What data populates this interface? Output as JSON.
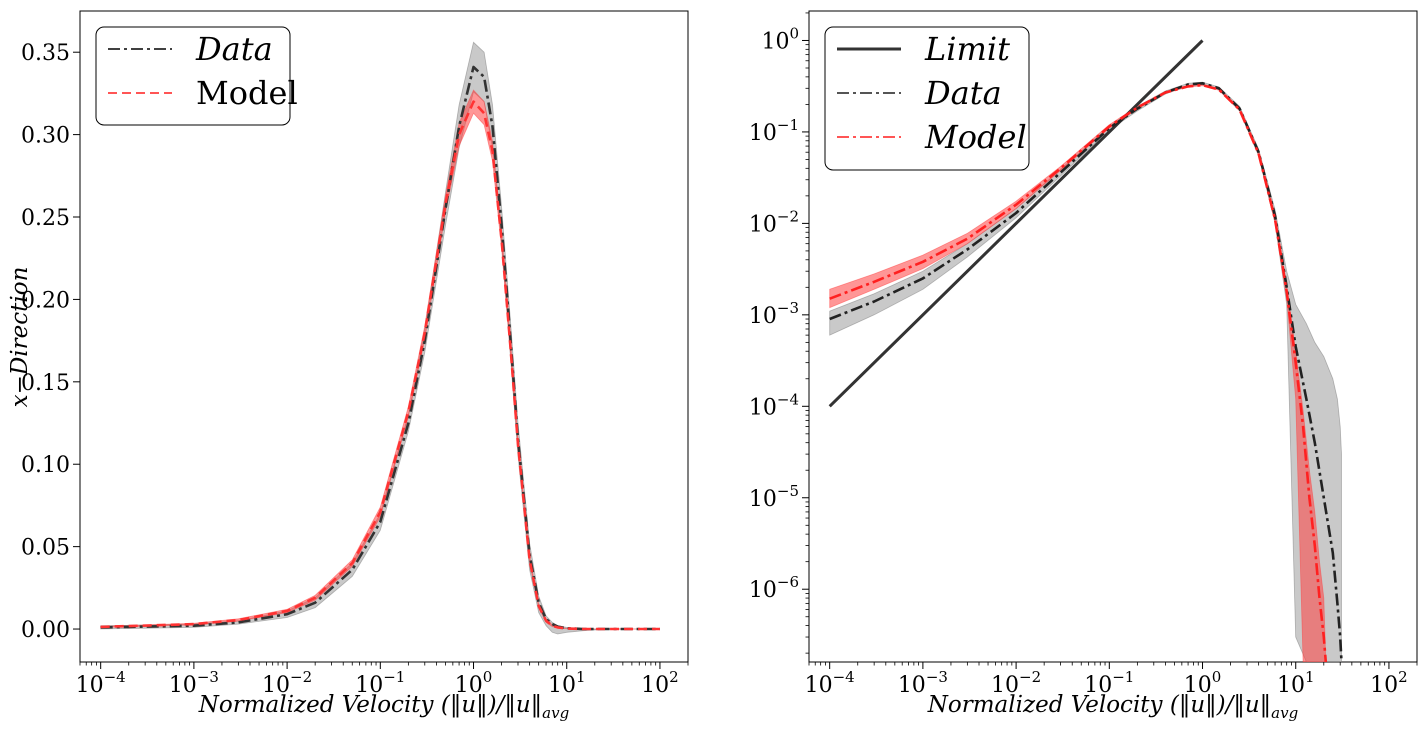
{
  "chart_data": [
    {
      "type": "line",
      "xscale": "log",
      "yscale": "linear",
      "xlim": [
        6e-05,
        200
      ],
      "ylim": [
        -0.02,
        0.375
      ],
      "xticks": [
        {
          "value": 0.0001,
          "base": "10",
          "exp": "−4"
        },
        {
          "value": 0.001,
          "base": "10",
          "exp": "−3"
        },
        {
          "value": 0.01,
          "base": "10",
          "exp": "−2"
        },
        {
          "value": 0.1,
          "base": "10",
          "exp": "−1"
        },
        {
          "value": 1,
          "base": "10",
          "exp": "0"
        },
        {
          "value": 10,
          "base": "10",
          "exp": "1"
        },
        {
          "value": 100,
          "base": "10",
          "exp": "2"
        }
      ],
      "yticks": [
        {
          "value": 0.0,
          "label": "0.00"
        },
        {
          "value": 0.05,
          "label": "0.05"
        },
        {
          "value": 0.1,
          "label": "0.10"
        },
        {
          "value": 0.15,
          "label": "0.15"
        },
        {
          "value": 0.2,
          "label": "0.20"
        },
        {
          "value": 0.25,
          "label": "0.25"
        },
        {
          "value": 0.3,
          "label": "0.30"
        },
        {
          "value": 0.35,
          "label": "0.35"
        }
      ],
      "xlabel": "Normalized Velocity (‖u‖)/‖u‖",
      "xlabel_sub": "avg",
      "ylabel": "x−Direction",
      "legend": [
        {
          "label": "Data",
          "style": "dashdot",
          "color": "#404040",
          "italic": true
        },
        {
          "label": "Model",
          "style": "dashed",
          "color": "#ff5555",
          "italic": false
        }
      ],
      "series": [
        {
          "name": "Data",
          "color": "#333333",
          "style": "dashdot",
          "x": [
            0.0001,
            0.001,
            0.003,
            0.01,
            0.02,
            0.05,
            0.1,
            0.2,
            0.3,
            0.5,
            0.7,
            1.0,
            1.3,
            1.6,
            2.0,
            2.5,
            3.0,
            4.0,
            5.0,
            6.0,
            7.0,
            8.0,
            10,
            15,
            30,
            100
          ],
          "y": [
            0.001,
            0.002,
            0.004,
            0.009,
            0.016,
            0.036,
            0.065,
            0.125,
            0.175,
            0.255,
            0.305,
            0.341,
            0.335,
            0.305,
            0.245,
            0.175,
            0.115,
            0.045,
            0.016,
            0.006,
            0.003,
            0.0015,
            0.0005,
            0.0,
            0.0,
            0.0
          ],
          "band_upper": [
            0.002,
            0.003,
            0.005,
            0.011,
            0.019,
            0.04,
            0.07,
            0.13,
            0.182,
            0.265,
            0.318,
            0.356,
            0.35,
            0.318,
            0.256,
            0.186,
            0.125,
            0.052,
            0.02,
            0.008,
            0.004,
            0.002,
            0.001,
            0.0,
            0.0,
            0.0
          ],
          "band_lower": [
            0.0,
            0.001,
            0.003,
            0.007,
            0.013,
            0.032,
            0.06,
            0.12,
            0.168,
            0.245,
            0.292,
            0.326,
            0.32,
            0.292,
            0.234,
            0.164,
            0.105,
            0.036,
            0.01,
            0.002,
            -0.002,
            -0.003,
            -0.002,
            -0.001,
            0.0,
            0.0
          ]
        },
        {
          "name": "Model",
          "color": "#ff3333",
          "style": "dashed",
          "x": [
            0.0001,
            0.001,
            0.003,
            0.01,
            0.02,
            0.05,
            0.1,
            0.2,
            0.3,
            0.5,
            0.7,
            1.0,
            1.3,
            1.6,
            2.0,
            2.5,
            3.0,
            4.0,
            5.0,
            6.0,
            7.0,
            8.0,
            10,
            15,
            30,
            100
          ],
          "y": [
            0.0013,
            0.003,
            0.0055,
            0.011,
            0.019,
            0.04,
            0.071,
            0.132,
            0.18,
            0.258,
            0.3,
            0.32,
            0.313,
            0.29,
            0.236,
            0.17,
            0.112,
            0.042,
            0.014,
            0.005,
            0.002,
            0.001,
            0.0003,
            0.0,
            0.0,
            0.0
          ],
          "band_upper": [
            0.0016,
            0.0035,
            0.0062,
            0.012,
            0.0205,
            0.042,
            0.074,
            0.135,
            0.184,
            0.263,
            0.307,
            0.327,
            0.32,
            0.296,
            0.241,
            0.174,
            0.115,
            0.044,
            0.015,
            0.006,
            0.0025,
            0.0012,
            0.0004,
            0.0,
            0.0,
            0.0
          ],
          "band_lower": [
            0.001,
            0.0025,
            0.0048,
            0.01,
            0.0175,
            0.038,
            0.068,
            0.129,
            0.176,
            0.253,
            0.293,
            0.313,
            0.306,
            0.284,
            0.231,
            0.166,
            0.109,
            0.04,
            0.013,
            0.004,
            0.0015,
            0.0008,
            0.0002,
            0.0,
            0.0,
            0.0
          ]
        }
      ]
    },
    {
      "type": "line",
      "xscale": "log",
      "yscale": "log",
      "xlim": [
        6e-05,
        200
      ],
      "ylim": [
        1.6e-07,
        2.1
      ],
      "xticks": [
        {
          "value": 0.0001,
          "base": "10",
          "exp": "−4"
        },
        {
          "value": 0.001,
          "base": "10",
          "exp": "−3"
        },
        {
          "value": 0.01,
          "base": "10",
          "exp": "−2"
        },
        {
          "value": 0.1,
          "base": "10",
          "exp": "−1"
        },
        {
          "value": 1,
          "base": "10",
          "exp": "0"
        },
        {
          "value": 10,
          "base": "10",
          "exp": "1"
        },
        {
          "value": 100,
          "base": "10",
          "exp": "2"
        }
      ],
      "yticks": [
        {
          "value": 1e-06,
          "base": "10",
          "exp": "−6"
        },
        {
          "value": 1e-05,
          "base": "10",
          "exp": "−5"
        },
        {
          "value": 0.0001,
          "base": "10",
          "exp": "−4"
        },
        {
          "value": 0.001,
          "base": "10",
          "exp": "−3"
        },
        {
          "value": 0.01,
          "base": "10",
          "exp": "−2"
        },
        {
          "value": 0.1,
          "base": "10",
          "exp": "−1"
        },
        {
          "value": 1,
          "base": "10",
          "exp": "0"
        }
      ],
      "xlabel": "Normalized Velocity (‖u‖)/‖u‖",
      "xlabel_sub": "avg",
      "legend": [
        {
          "label": "Limit",
          "style": "solid",
          "color": "#333333",
          "italic": true
        },
        {
          "label": "Data",
          "style": "dashdot",
          "color": "#555555",
          "italic": true
        },
        {
          "label": "Model",
          "style": "dashdot",
          "color": "#ff5555",
          "italic": true
        }
      ],
      "series": [
        {
          "name": "Limit",
          "color": "#333333",
          "style": "solid",
          "x": [
            0.0001,
            1.0
          ],
          "y": [
            0.0001,
            1.0
          ]
        },
        {
          "name": "Data",
          "color": "#222222",
          "style": "dashdot",
          "x": [
            0.0001,
            0.0003,
            0.001,
            0.003,
            0.01,
            0.03,
            0.1,
            0.2,
            0.4,
            0.7,
            1.0,
            1.5,
            2.5,
            4.0,
            6.0,
            8.0,
            10,
            13,
            16,
            20,
            25,
            28,
            30,
            31
          ],
          "y": [
            0.0009,
            0.0014,
            0.0025,
            0.0052,
            0.013,
            0.036,
            0.11,
            0.18,
            0.27,
            0.33,
            0.34,
            0.3,
            0.18,
            0.06,
            0.012,
            0.002,
            0.00045,
            0.00012,
            4e-05,
            1e-05,
            2.5e-06,
            7e-07,
            3e-07,
            1.6e-07
          ],
          "band_upper": [
            0.0011,
            0.0017,
            0.003,
            0.006,
            0.0145,
            0.039,
            0.115,
            0.19,
            0.28,
            0.34,
            0.35,
            0.31,
            0.19,
            0.065,
            0.014,
            0.003,
            0.0013,
            0.0008,
            0.0005,
            0.00035,
            0.0002,
            0.00012,
            6e-05,
            3e-05
          ],
          "band_lower": [
            0.0006,
            0.001,
            0.0019,
            0.0043,
            0.0115,
            0.033,
            0.105,
            0.17,
            0.26,
            0.32,
            0.33,
            0.29,
            0.17,
            0.055,
            0.01,
            0.0013,
            3e-07,
            1.6e-07,
            1.6e-07,
            1.6e-07,
            1.6e-07,
            1.6e-07,
            1.6e-07,
            1.6e-07
          ]
        },
        {
          "name": "Model",
          "color": "#ff2020",
          "style": "dashdot",
          "x": [
            0.0001,
            0.0003,
            0.001,
            0.003,
            0.01,
            0.03,
            0.1,
            0.2,
            0.4,
            0.7,
            1.0,
            1.5,
            2.5,
            4.0,
            6.0,
            8.0,
            10,
            12,
            14,
            16,
            18,
            20,
            21
          ],
          "y": [
            0.0015,
            0.0023,
            0.0038,
            0.0068,
            0.016,
            0.04,
            0.115,
            0.185,
            0.27,
            0.315,
            0.325,
            0.29,
            0.175,
            0.058,
            0.011,
            0.0018,
            0.0003,
            6e-05,
            1e-05,
            3e-06,
            8e-07,
            3e-07,
            1.6e-07
          ],
          "band_upper": [
            0.0019,
            0.0028,
            0.0045,
            0.0078,
            0.0175,
            0.042,
            0.12,
            0.19,
            0.275,
            0.32,
            0.33,
            0.295,
            0.18,
            0.06,
            0.012,
            0.002,
            0.0004,
            9e-05,
            2e-05,
            7e-06,
            2e-06,
            8e-07,
            1.6e-07
          ],
          "band_lower": [
            0.0012,
            0.0019,
            0.0032,
            0.006,
            0.0145,
            0.038,
            0.11,
            0.18,
            0.265,
            0.31,
            0.32,
            0.285,
            0.17,
            0.056,
            0.01,
            0.0015,
            0.00012,
            1.6e-07,
            1.6e-07,
            1.6e-07,
            1.6e-07,
            1.6e-07,
            1.6e-07
          ]
        }
      ]
    }
  ]
}
